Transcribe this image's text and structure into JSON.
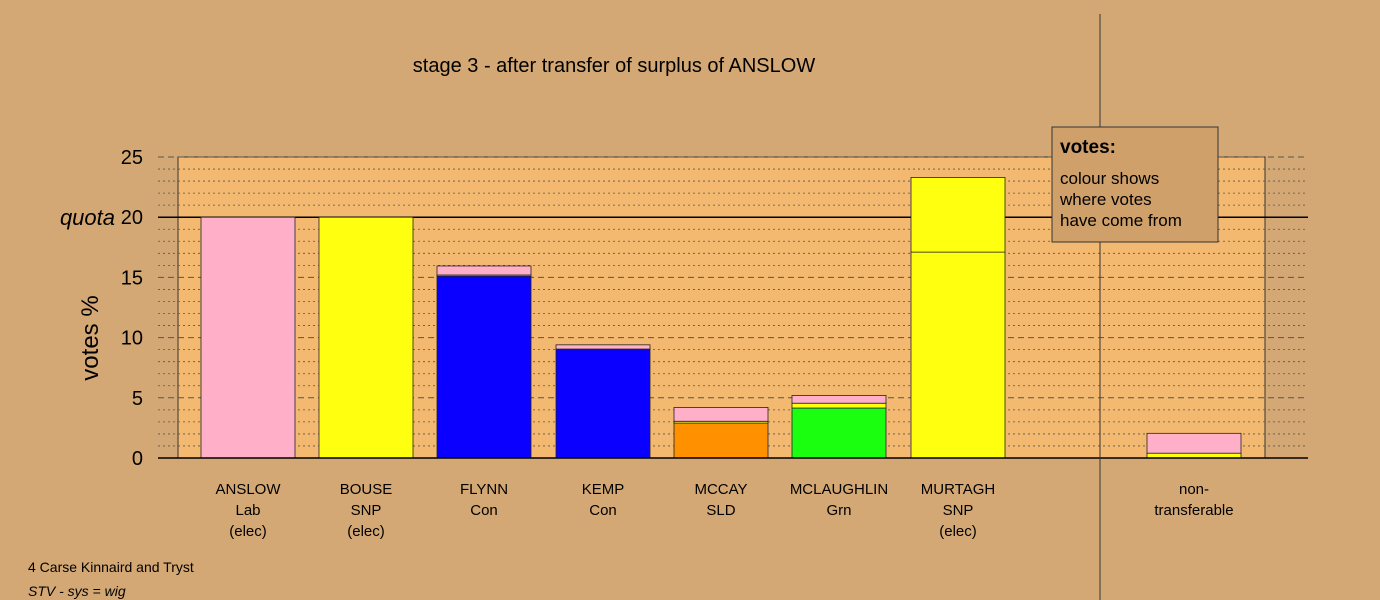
{
  "chart_data": {
    "type": "bar",
    "stacked": true,
    "title": "stage 3 - after transfer of surplus of ANSLOW",
    "ylabel": "votes %",
    "ylim": [
      0,
      25
    ],
    "yticks": [
      0,
      5,
      10,
      15,
      20,
      25
    ],
    "quota": 20,
    "quota_label": "quota",
    "grid": true,
    "candidates": [
      {
        "name": "ANSLOW",
        "party": "Lab",
        "status": "(elec)",
        "segments": [
          {
            "value": 20,
            "color": "#ffb0c8"
          }
        ]
      },
      {
        "name": "BOUSE",
        "party": "SNP",
        "status": "(elec)",
        "segments": [
          {
            "value": 20,
            "color": "#ffff10"
          }
        ]
      },
      {
        "name": "FLYNN",
        "party": "Con",
        "status": "",
        "segments": [
          {
            "value": 15.1,
            "color": "#0a00ff"
          },
          {
            "value": 0.1,
            "color": "#ffff10"
          },
          {
            "value": 0.75,
            "color": "#ffb0c8"
          }
        ]
      },
      {
        "name": "KEMP",
        "party": "Con",
        "status": "",
        "segments": [
          {
            "value": 9.0,
            "color": "#0a00ff"
          },
          {
            "value": 0.05,
            "color": "#ffff10"
          },
          {
            "value": 0.35,
            "color": "#ffb0c8"
          }
        ]
      },
      {
        "name": "MCCAY",
        "party": "SLD",
        "status": "",
        "segments": [
          {
            "value": 2.9,
            "color": "#ff9000"
          },
          {
            "value": 0.15,
            "color": "#ffff10"
          },
          {
            "value": 1.15,
            "color": "#ffb0c8"
          }
        ]
      },
      {
        "name": "MCLAUGHLIN",
        "party": "Grn",
        "status": "",
        "segments": [
          {
            "value": 4.15,
            "color": "#1aff10"
          },
          {
            "value": 0.4,
            "color": "#ffff10"
          },
          {
            "value": 0.65,
            "color": "#ffb0c8"
          }
        ]
      },
      {
        "name": "MURTAGH",
        "party": "SNP",
        "status": "(elec)",
        "segments": [
          {
            "value": 17.1,
            "color": "#ffff10"
          },
          {
            "value": 6.2,
            "color": "#ffff10"
          }
        ]
      },
      {
        "name": "non-",
        "party": "transferable",
        "status": "",
        "segments": [
          {
            "value": 0.4,
            "color": "#ffff10"
          },
          {
            "value": 1.65,
            "color": "#ffb0c8"
          }
        ]
      }
    ]
  },
  "legend": {
    "title": "votes:",
    "lines": [
      "colour shows",
      "where votes",
      "have come from"
    ]
  },
  "footer": {
    "constituency": "4 Carse Kinnaird and Tryst",
    "system": "STV - sys = wig"
  },
  "colors": {
    "background": "#d4a874",
    "plot_area": "#f4b970",
    "legend_box": "#cfa06a"
  }
}
